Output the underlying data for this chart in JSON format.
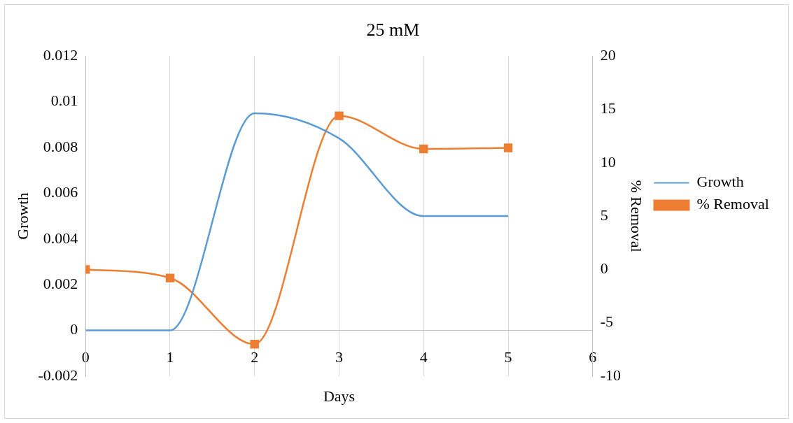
{
  "chart_data": {
    "type": "line",
    "title": "25 mM",
    "xlabel": "Days",
    "ylabel": "Growth",
    "y2label": "% Removal",
    "x": [
      0,
      1,
      2,
      3,
      4,
      5
    ],
    "series": [
      {
        "name": "Growth",
        "color": "#5b9bd5",
        "values": [
          0,
          0,
          0.0095,
          0.0084,
          0.005,
          0.005
        ],
        "marker": "none"
      },
      {
        "name": "% Removal",
        "color": "#ed7d31",
        "values": [
          0,
          -0.8,
          -7,
          14.4,
          11.3,
          11.4
        ],
        "axis": "y2",
        "marker": "square"
      }
    ],
    "xlim": [
      0,
      6
    ],
    "xticks": [
      0,
      1,
      2,
      3,
      4,
      5,
      6
    ],
    "ylim": [
      -0.002,
      0.012
    ],
    "yticks": [
      -0.002,
      0,
      0.002,
      0.004,
      0.006,
      0.008,
      0.01,
      0.012
    ],
    "y2lim": [
      -10,
      20
    ],
    "y2ticks": [
      -10,
      -5,
      0,
      5,
      10,
      15,
      20
    ],
    "grid": "x",
    "legend": "right"
  }
}
